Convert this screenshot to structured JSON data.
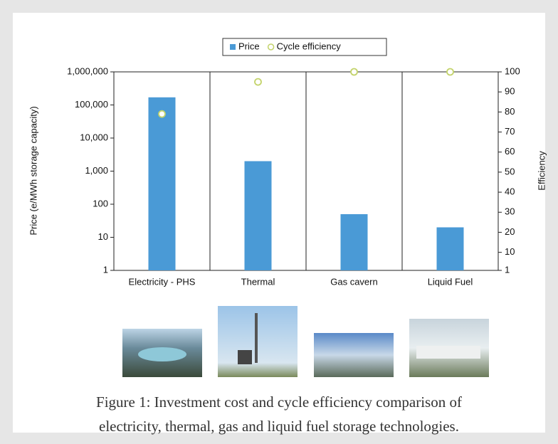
{
  "chart_data": {
    "type": "bar",
    "ylabel": "Price (e/MWh storage capacity)",
    "y2label": "Efficiency",
    "categories": [
      "Electricity - PHS",
      "Thermal",
      "Gas cavern",
      "Liquid Fuel"
    ],
    "series": [
      {
        "name": "Price",
        "type": "bar",
        "color": "#4a9ad6",
        "values": [
          170000,
          2000,
          50,
          20
        ]
      },
      {
        "name": "Cycle efficiency",
        "type": "scatter",
        "axis": "y2",
        "color": "#c3d36a",
        "values": [
          79,
          95,
          100,
          100
        ]
      }
    ],
    "ylog": true,
    "ylim": [
      1,
      1000000
    ],
    "yticks": [
      1,
      10,
      100,
      {
        "value": 1000,
        "label": "1,000"
      },
      {
        "value": 10000,
        "label": "10,000"
      },
      {
        "value": 100000,
        "label": "100,000"
      },
      {
        "value": 1000000,
        "label": "1,000,000"
      }
    ],
    "y2lim": [
      1,
      100
    ],
    "y2ticks": [
      1,
      10,
      20,
      30,
      40,
      50,
      60,
      70,
      80,
      90,
      100
    ],
    "legend": "top"
  },
  "caption": [
    "Figure 1: Investment cost and cycle efficiency comparison of",
    "electricity, thermal, gas and liquid fuel storage technologies."
  ]
}
